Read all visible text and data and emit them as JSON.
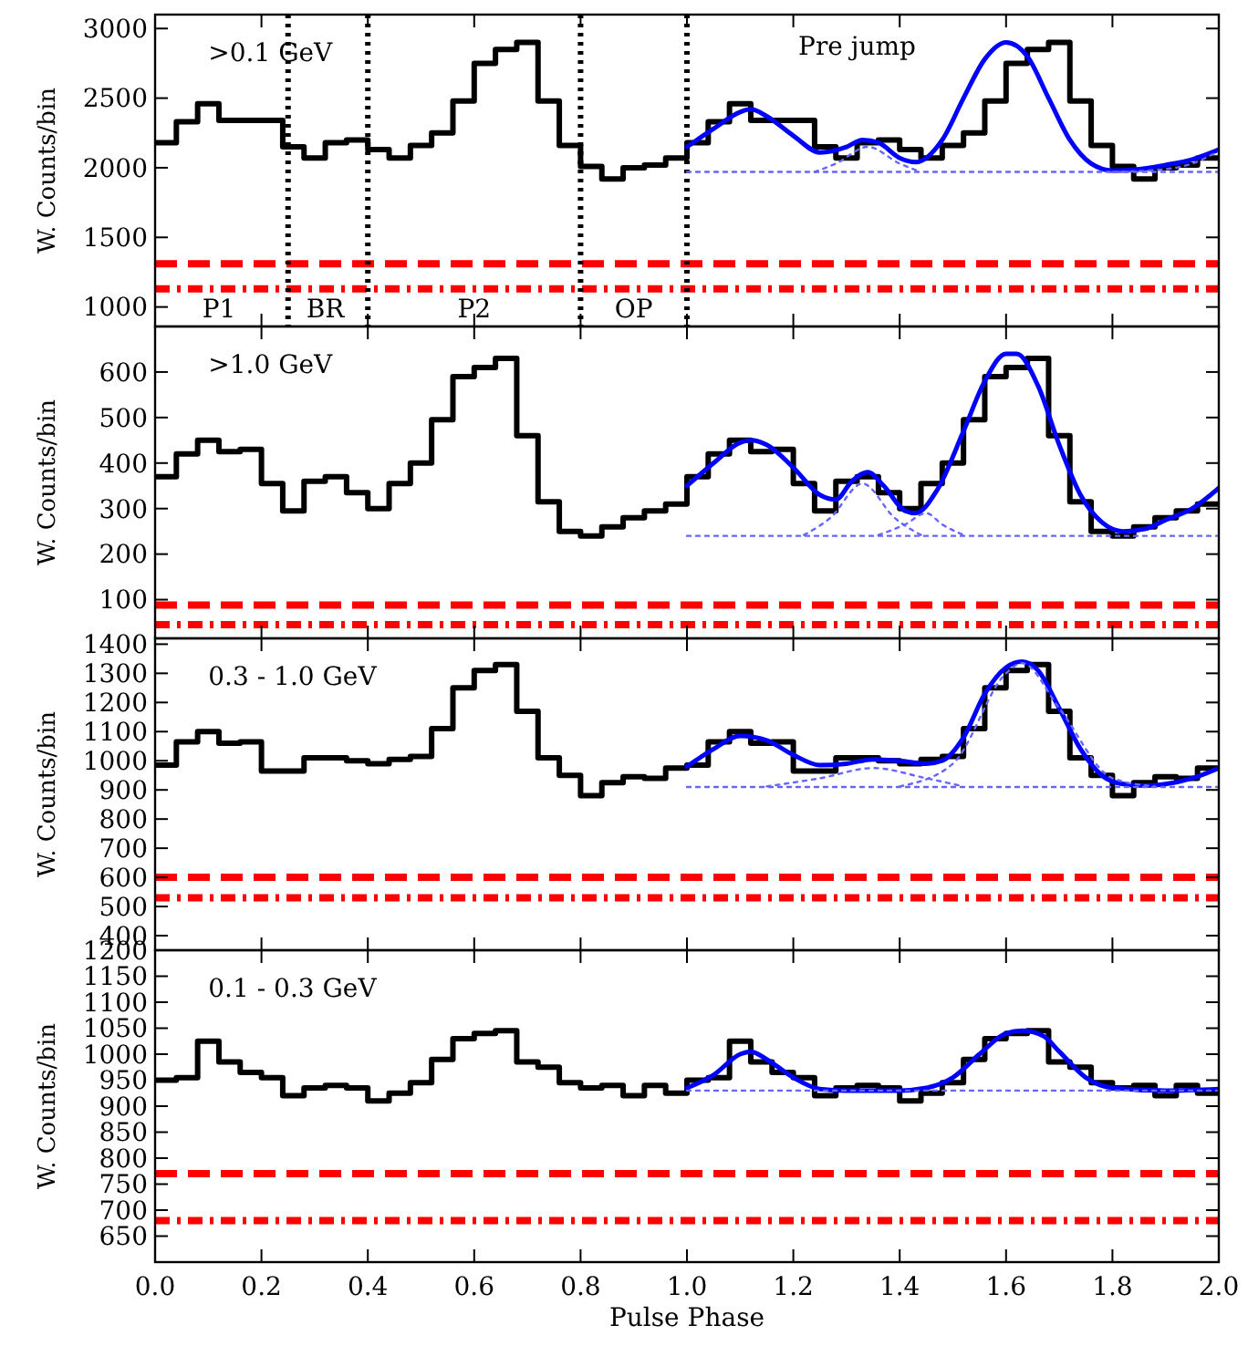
{
  "chart_data": [
    {
      "type": "histogram",
      "ylabel": "W. Counts/bin",
      "color": "#000000",
      "annotations": [
        ">0.1 GeV",
        "Pre jump",
        "P1",
        "BR",
        "P2",
        "OP"
      ],
      "bins": [
        0,
        0.04,
        0.08,
        0.12,
        0.16,
        0.2,
        0.24,
        0.28,
        0.32,
        0.36,
        0.4,
        0.44,
        0.48,
        0.52,
        0.56,
        0.6,
        0.64,
        0.68,
        0.72,
        0.76,
        0.8,
        0.84,
        0.88,
        0.92,
        0.96,
        1,
        1.04,
        1.08,
        1.12,
        1.16,
        1.2,
        1.24,
        1.28,
        1.32,
        1.36,
        1.4,
        1.44,
        1.48,
        1.52,
        1.56,
        1.6,
        1.64,
        1.68,
        1.72,
        1.76,
        1.8,
        1.84,
        1.88,
        1.92,
        1.96,
        2
      ],
      "values": [
        2180,
        2330,
        2460,
        2340,
        2340,
        2340,
        2150,
        2070,
        2180,
        2200,
        2130,
        2070,
        2160,
        2250,
        2480,
        2750,
        2850,
        2900,
        2480,
        2160,
        2010,
        1920,
        2000,
        2020,
        2070,
        2180,
        2330,
        2460,
        2340,
        2340,
        2340,
        2150,
        2070,
        2180,
        2200,
        2130,
        2070,
        2160,
        2250,
        2480,
        2750,
        2850,
        2900,
        2480,
        2160,
        2010,
        1920,
        2000,
        2020,
        2070
      ],
      "series": [
        {
          "type": "line",
          "color": "#0000ff",
          "line_style": "solid",
          "x": [
            1.0,
            1.05,
            1.1,
            1.12,
            1.15,
            1.2,
            1.25,
            1.3,
            1.33,
            1.36,
            1.4,
            1.43,
            1.48,
            1.52,
            1.56,
            1.6,
            1.64,
            1.68,
            1.72,
            1.76,
            1.8,
            1.85,
            1.9,
            1.95,
            2.0
          ],
          "values": [
            2150,
            2280,
            2400,
            2420,
            2370,
            2230,
            2110,
            2150,
            2200,
            2180,
            2070,
            2040,
            2200,
            2500,
            2780,
            2900,
            2800,
            2500,
            2200,
            2030,
            1980,
            1990,
            2020,
            2060,
            2130
          ]
        },
        {
          "type": "line",
          "color": "#6666ff",
          "line_style": "dotted",
          "x": [
            1.0,
            2.0
          ],
          "values": [
            1970,
            1970
          ]
        },
        {
          "type": "line",
          "color": "#6666ff",
          "line_style": "dotted",
          "x": [
            1.24,
            1.28,
            1.34,
            1.4,
            1.44
          ],
          "values": [
            1970,
            2030,
            2150,
            2030,
            1970
          ]
        },
        {
          "type": "line",
          "color": "#6666ff",
          "line_style": "dotted",
          "x": [
            1.8,
            1.9,
            1.95,
            2.0
          ],
          "values": [
            1970,
            1990,
            2030,
            2120
          ]
        }
      ],
      "ref_lines": [
        {
          "axis": "y",
          "value": 1310,
          "color": "#ff0000",
          "line_style": "dashed"
        },
        {
          "axis": "y",
          "value": 1130,
          "color": "#ff0000",
          "line_style": "dashdot"
        },
        {
          "axis": "x",
          "value": 0.25,
          "color": "#000000",
          "line_style": "dotted"
        },
        {
          "axis": "x",
          "value": 0.4,
          "color": "#000000",
          "line_style": "dotted"
        },
        {
          "axis": "x",
          "value": 0.8,
          "color": "#000000",
          "line_style": "dotted"
        },
        {
          "axis": "x",
          "value": 1.0,
          "color": "#000000",
          "line_style": "dotted"
        }
      ],
      "xlim": [
        0,
        2
      ],
      "xticks": [
        0,
        0.2,
        0.4,
        0.6,
        0.8,
        1,
        1.2,
        1.4,
        1.6,
        1.8,
        2
      ],
      "ylim": [
        860,
        3100
      ],
      "yticks": [
        1000,
        1500,
        2000,
        2500,
        3000
      ],
      "tick_labels": "y"
    },
    {
      "type": "histogram",
      "ylabel": "W. Counts/bin",
      "color": "#000000",
      "annotations": [
        ">1.0 GeV"
      ],
      "bins": [
        0,
        0.04,
        0.08,
        0.12,
        0.16,
        0.2,
        0.24,
        0.28,
        0.32,
        0.36,
        0.4,
        0.44,
        0.48,
        0.52,
        0.56,
        0.6,
        0.64,
        0.68,
        0.72,
        0.76,
        0.8,
        0.84,
        0.88,
        0.92,
        0.96,
        1,
        1.04,
        1.08,
        1.12,
        1.16,
        1.2,
        1.24,
        1.28,
        1.32,
        1.36,
        1.4,
        1.44,
        1.48,
        1.52,
        1.56,
        1.6,
        1.64,
        1.68,
        1.72,
        1.76,
        1.8,
        1.84,
        1.88,
        1.92,
        1.96,
        2
      ],
      "values": [
        370,
        420,
        450,
        425,
        430,
        355,
        295,
        360,
        370,
        335,
        300,
        355,
        400,
        495,
        590,
        610,
        630,
        460,
        315,
        250,
        240,
        260,
        280,
        295,
        310,
        370,
        420,
        450,
        425,
        430,
        355,
        295,
        360,
        370,
        335,
        300,
        355,
        400,
        495,
        590,
        610,
        630,
        460,
        315,
        250,
        240,
        260,
        280,
        295,
        310
      ],
      "series": [
        {
          "type": "line",
          "color": "#0000ff",
          "line_style": "solid",
          "x": [
            1.0,
            1.05,
            1.1,
            1.12,
            1.15,
            1.2,
            1.25,
            1.28,
            1.31,
            1.34,
            1.37,
            1.41,
            1.43,
            1.47,
            1.52,
            1.56,
            1.6,
            1.62,
            1.66,
            1.7,
            1.74,
            1.78,
            1.82,
            1.86,
            1.9,
            1.95,
            2.0
          ],
          "values": [
            350,
            400,
            445,
            450,
            440,
            390,
            330,
            320,
            360,
            380,
            350,
            295,
            290,
            340,
            470,
            580,
            640,
            640,
            570,
            440,
            330,
            270,
            250,
            255,
            275,
            300,
            345
          ]
        },
        {
          "type": "line",
          "color": "#6666ff",
          "line_style": "dotted",
          "x": [
            1.0,
            2.0
          ],
          "values": [
            240,
            240
          ]
        },
        {
          "type": "line",
          "color": "#6666ff",
          "line_style": "dotted",
          "x": [
            1.22,
            1.27,
            1.33,
            1.39,
            1.44
          ],
          "values": [
            242,
            280,
            355,
            280,
            242
          ]
        },
        {
          "type": "line",
          "color": "#6666ff",
          "line_style": "dotted",
          "x": [
            1.36,
            1.41,
            1.45,
            1.48,
            1.52
          ],
          "values": [
            242,
            265,
            290,
            265,
            242
          ]
        }
      ],
      "ref_lines": [
        {
          "axis": "y",
          "value": 88,
          "color": "#ff0000",
          "line_style": "dashed"
        },
        {
          "axis": "y",
          "value": 45,
          "color": "#ff0000",
          "line_style": "dashdot"
        }
      ],
      "xlim": [
        0,
        2
      ],
      "xticks": [
        0,
        0.2,
        0.4,
        0.6,
        0.8,
        1,
        1.2,
        1.4,
        1.6,
        1.8,
        2
      ],
      "ylim": [
        15,
        700
      ],
      "yticks": [
        100,
        200,
        300,
        400,
        500,
        600
      ],
      "tick_labels": "y"
    },
    {
      "type": "histogram",
      "ylabel": "W. Counts/bin",
      "color": "#000000",
      "annotations": [
        "0.3 - 1.0 GeV"
      ],
      "bins": [
        0,
        0.04,
        0.08,
        0.12,
        0.16,
        0.2,
        0.24,
        0.28,
        0.32,
        0.36,
        0.4,
        0.44,
        0.48,
        0.52,
        0.56,
        0.6,
        0.64,
        0.68,
        0.72,
        0.76,
        0.8,
        0.84,
        0.88,
        0.92,
        0.96,
        1,
        1.04,
        1.08,
        1.12,
        1.16,
        1.2,
        1.24,
        1.28,
        1.32,
        1.36,
        1.4,
        1.44,
        1.48,
        1.52,
        1.56,
        1.6,
        1.64,
        1.68,
        1.72,
        1.76,
        1.8,
        1.84,
        1.88,
        1.92,
        1.96,
        2
      ],
      "values": [
        985,
        1065,
        1100,
        1060,
        1065,
        965,
        965,
        1010,
        1010,
        1000,
        990,
        1005,
        1015,
        1110,
        1250,
        1310,
        1330,
        1170,
        1010,
        950,
        880,
        925,
        945,
        940,
        975,
        985,
        1065,
        1100,
        1060,
        1065,
        965,
        965,
        1010,
        1010,
        1000,
        990,
        1005,
        1015,
        1110,
        1250,
        1310,
        1330,
        1170,
        1010,
        950,
        880,
        925,
        945,
        940,
        975
      ],
      "series": [
        {
          "type": "line",
          "color": "#0000ff",
          "line_style": "solid",
          "x": [
            1.0,
            1.05,
            1.1,
            1.15,
            1.2,
            1.25,
            1.3,
            1.35,
            1.4,
            1.45,
            1.48,
            1.52,
            1.56,
            1.6,
            1.63,
            1.66,
            1.7,
            1.74,
            1.78,
            1.82,
            1.86,
            1.9,
            1.95,
            2.0
          ],
          "values": [
            980,
            1040,
            1085,
            1070,
            1020,
            985,
            990,
            1005,
            1000,
            990,
            1000,
            1080,
            1230,
            1320,
            1340,
            1310,
            1180,
            1040,
            950,
            920,
            915,
            920,
            940,
            975
          ]
        },
        {
          "type": "line",
          "color": "#6666ff",
          "line_style": "dotted",
          "x": [
            1.0,
            2.0
          ],
          "values": [
            910,
            910
          ]
        },
        {
          "type": "line",
          "color": "#6666ff",
          "line_style": "dotted",
          "x": [
            1.15,
            1.25,
            1.35,
            1.45,
            1.52
          ],
          "values": [
            912,
            940,
            975,
            940,
            912
          ]
        },
        {
          "type": "line",
          "color": "#6666ff",
          "line_style": "dotted",
          "x": [
            1.4,
            1.5,
            1.6,
            1.63,
            1.7,
            1.8,
            1.88
          ],
          "values": [
            912,
            990,
            1300,
            1335,
            1180,
            940,
            912
          ]
        }
      ],
      "ref_lines": [
        {
          "axis": "y",
          "value": 600,
          "color": "#ff0000",
          "line_style": "dashed"
        },
        {
          "axis": "y",
          "value": 530,
          "color": "#ff0000",
          "line_style": "dashdot"
        }
      ],
      "xlim": [
        0,
        2
      ],
      "xticks": [
        0,
        0.2,
        0.4,
        0.6,
        0.8,
        1,
        1.2,
        1.4,
        1.6,
        1.8,
        2
      ],
      "ylim": [
        350,
        1420
      ],
      "yticks": [
        400,
        500,
        600,
        700,
        800,
        900,
        1000,
        1100,
        1200,
        1300,
        1400
      ],
      "tick_labels": "y"
    },
    {
      "type": "histogram",
      "xlabel": "Pulse Phase",
      "ylabel": "W. Counts/bin",
      "color": "#000000",
      "annotations": [
        "0.1 - 0.3 GeV"
      ],
      "bins": [
        0,
        0.04,
        0.08,
        0.12,
        0.16,
        0.2,
        0.24,
        0.28,
        0.32,
        0.36,
        0.4,
        0.44,
        0.48,
        0.52,
        0.56,
        0.6,
        0.64,
        0.68,
        0.72,
        0.76,
        0.8,
        0.84,
        0.88,
        0.92,
        0.96,
        1,
        1.04,
        1.08,
        1.12,
        1.16,
        1.2,
        1.24,
        1.28,
        1.32,
        1.36,
        1.4,
        1.44,
        1.48,
        1.52,
        1.56,
        1.6,
        1.64,
        1.68,
        1.72,
        1.76,
        1.8,
        1.84,
        1.88,
        1.92,
        1.96,
        2
      ],
      "values": [
        950,
        955,
        1025,
        985,
        965,
        955,
        920,
        935,
        940,
        935,
        910,
        925,
        945,
        990,
        1030,
        1040,
        1045,
        985,
        975,
        945,
        935,
        940,
        920,
        940,
        925,
        950,
        955,
        1025,
        985,
        965,
        955,
        920,
        935,
        940,
        935,
        910,
        925,
        945,
        990,
        1030,
        1040,
        1045,
        985,
        975,
        945,
        935,
        940,
        920,
        940,
        925
      ],
      "series": [
        {
          "type": "line",
          "color": "#0000ff",
          "line_style": "solid",
          "x": [
            1.0,
            1.05,
            1.1,
            1.12,
            1.15,
            1.2,
            1.25,
            1.3,
            1.4,
            1.45,
            1.5,
            1.55,
            1.6,
            1.63,
            1.67,
            1.7,
            1.75,
            1.8,
            1.9,
            2.0
          ],
          "values": [
            935,
            960,
            1000,
            1005,
            990,
            955,
            933,
            930,
            930,
            935,
            955,
            1000,
            1040,
            1045,
            1035,
            1005,
            955,
            935,
            930,
            933
          ]
        },
        {
          "type": "line",
          "color": "#6666ff",
          "line_style": "dotted",
          "x": [
            1.0,
            2.0
          ],
          "values": [
            930,
            930
          ]
        }
      ],
      "ref_lines": [
        {
          "axis": "y",
          "value": 770,
          "color": "#ff0000",
          "line_style": "dashed"
        },
        {
          "axis": "y",
          "value": 680,
          "color": "#ff0000",
          "line_style": "dashdot"
        }
      ],
      "xlim": [
        0,
        2
      ],
      "xticks": [
        {
          "value": 0,
          "label": "0.0"
        },
        0.2,
        0.4,
        0.6,
        0.8,
        {
          "value": 1,
          "label": "1.0"
        },
        1.2,
        1.4,
        1.6,
        1.8,
        {
          "value": 2,
          "label": "2.0"
        }
      ],
      "ylim": [
        600,
        1200
      ],
      "yticks": [
        650,
        700,
        750,
        800,
        850,
        900,
        950,
        1000,
        1050,
        1100,
        1150,
        1200
      ]
    }
  ]
}
